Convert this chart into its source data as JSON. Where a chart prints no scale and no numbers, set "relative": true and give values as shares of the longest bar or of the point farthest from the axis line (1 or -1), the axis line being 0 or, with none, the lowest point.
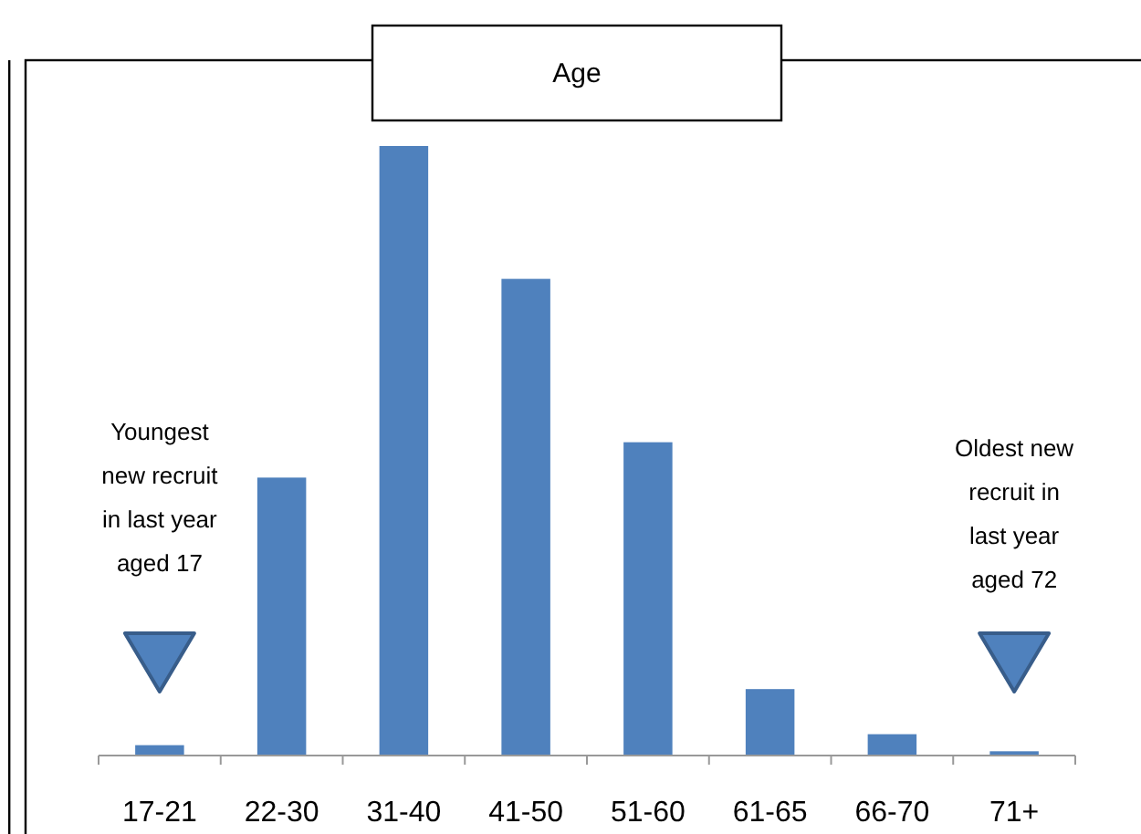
{
  "chart_data": {
    "type": "bar",
    "title": "Age",
    "relative": true,
    "color": "#4f81bd",
    "categories": [
      "17-21",
      "22-30",
      "31-40",
      "41-50",
      "51-60",
      "61-65",
      "66-70",
      "71+"
    ],
    "values": [
      0.017,
      0.456,
      1,
      0.782,
      0.514,
      0.109,
      0.035,
      0.007
    ],
    "annotations": [
      "Youngest\nnew recruit\nin last year\naged 17",
      "Oldest new\nrecruit in\nlast year\naged 72"
    ]
  }
}
